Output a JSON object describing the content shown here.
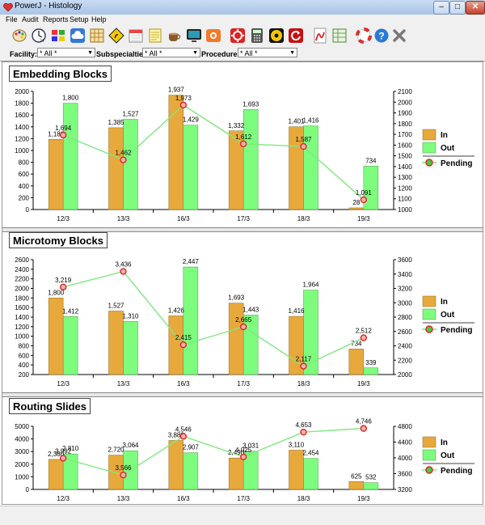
{
  "window": {
    "title": "PowerJ - Histology"
  },
  "menu": [
    "File",
    "Audit",
    "Reports",
    "Setup",
    "Help"
  ],
  "toolbar_icons": [
    "palette-icon",
    "clock-icon",
    "windows-icon",
    "cloud-icon",
    "grid-chart-icon",
    "warning-sign-icon",
    "calendar-icon",
    "notes-icon",
    "coffee-icon",
    "monitor-icon",
    "camera-icon",
    "gear-red-icon",
    "calculator-icon",
    "cd-icon",
    "refresh-red-icon",
    "pdf-icon",
    "spreadsheet-icon",
    "lifebuoy-icon",
    "help-icon",
    "exit-icon"
  ],
  "filters": {
    "facility": {
      "label": "Facility:",
      "value": "* All *"
    },
    "subspecialties": {
      "label": "Subspecialties:",
      "value": "* All *"
    },
    "procedures": {
      "label": "Procedures:",
      "value": "* All *"
    }
  },
  "legend": {
    "in": "In",
    "out": "Out",
    "pending": "Pending"
  },
  "colors": {
    "in": "#e8a93c",
    "out": "#7dfc7d",
    "pending_line": "#7fe87f",
    "pending_marker": "#f2b0b0"
  },
  "chart_data": [
    {
      "type": "bar",
      "title": "Embedding Blocks",
      "categories": [
        "12/3",
        "13/3",
        "16/3",
        "17/3",
        "18/3",
        "19/3"
      ],
      "series": [
        {
          "name": "In",
          "values": [
            1188,
            1385,
            1937,
            1332,
            1401,
            28
          ],
          "labels": [
            "1,188",
            "1,385",
            "1,937",
            "1,332",
            "1,401",
            "28"
          ]
        },
        {
          "name": "Out",
          "values": [
            1800,
            1527,
            1429,
            1693,
            1416,
            734
          ],
          "labels": [
            "1,800",
            "1,527",
            "1,429",
            "1,693",
            "1,416",
            "734"
          ]
        }
      ],
      "pending": {
        "values": [
          1694,
          1462,
          1973,
          1612,
          1587,
          1091
        ],
        "labels": [
          "1,694",
          "1,462",
          "1,973",
          "1,612",
          "1,587",
          "1,091"
        ]
      },
      "y_left": {
        "min": 0,
        "max": 2000,
        "ticks": [
          "0",
          "200",
          "400",
          "600",
          "800",
          "1000",
          "1200",
          "1400",
          "1600",
          "1800",
          "2000"
        ]
      },
      "y_right": {
        "min": 1000,
        "max": 2100,
        "ticks": [
          "1000",
          "1100",
          "1200",
          "1300",
          "1400",
          "1500",
          "1600",
          "1700",
          "1800",
          "1900",
          "2000",
          "2100"
        ]
      }
    },
    {
      "type": "bar",
      "title": "Microtomy Blocks",
      "categories": [
        "12/3",
        "13/3",
        "16/3",
        "17/3",
        "18/3",
        "19/3"
      ],
      "series": [
        {
          "name": "In",
          "values": [
            1800,
            1527,
            1426,
            1693,
            1416,
            734
          ],
          "labels": [
            "1,800",
            "1,527",
            "1,426",
            "1,693",
            "1,416",
            "734"
          ]
        },
        {
          "name": "Out",
          "values": [
            1412,
            1310,
            2447,
            1443,
            1964,
            339
          ],
          "labels": [
            "1,412",
            "1,310",
            "2,447",
            "1,443",
            "1,964",
            "339"
          ]
        }
      ],
      "pending": {
        "values": [
          3219,
          3436,
          2415,
          2665,
          2117,
          2512
        ],
        "labels": [
          "3,219",
          "3,436",
          "2,415",
          "2,665",
          "2,117",
          "2,512"
        ]
      },
      "y_left": {
        "min": 200,
        "max": 2600,
        "ticks": [
          "200",
          "400",
          "600",
          "800",
          "1000",
          "1200",
          "1400",
          "1600",
          "1800",
          "2000",
          "2200",
          "2400",
          "2600"
        ]
      },
      "y_right": {
        "min": 2000,
        "max": 3600,
        "ticks": [
          "2000",
          "2200",
          "2400",
          "2600",
          "2800",
          "3000",
          "3200",
          "3400",
          "3600"
        ]
      }
    },
    {
      "type": "bar",
      "title": "Routing Slides",
      "categories": [
        "12/3",
        "13/3",
        "16/3",
        "17/3",
        "18/3",
        "19/3"
      ],
      "series": [
        {
          "name": "In",
          "values": [
            2380,
            2720,
            3880,
            2490,
            3110,
            625
          ],
          "labels": [
            "2,380",
            "2,720",
            "3,880",
            "2,490",
            "3,110",
            "625"
          ]
        },
        {
          "name": "Out",
          "values": [
            2810,
            3064,
            2907,
            3031,
            2454,
            532
          ],
          "labels": [
            "2,810",
            "3,064",
            "2,907",
            "3,031",
            "2,454",
            "532"
          ]
        }
      ],
      "pending": {
        "values": [
          3992,
          3566,
          4546,
          4025,
          4653,
          4746
        ],
        "labels": [
          "3,992",
          "3,566",
          "4,546",
          "4,025",
          "4,653",
          "4,746"
        ]
      },
      "y_left": {
        "min": 0,
        "max": 5000,
        "ticks": [
          "0",
          "1000",
          "2000",
          "3000",
          "4000",
          "5000"
        ]
      },
      "y_right": {
        "min": 3200,
        "max": 4800,
        "ticks": [
          "3200",
          "3600",
          "4000",
          "4400",
          "4800"
        ]
      }
    }
  ]
}
